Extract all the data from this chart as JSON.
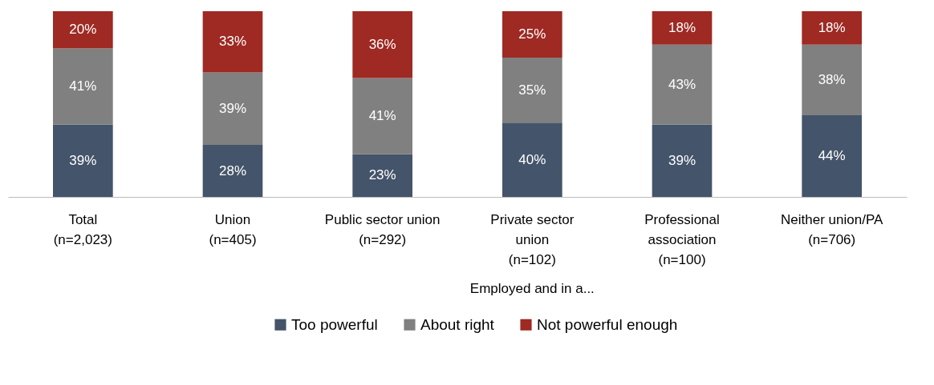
{
  "chart_data": {
    "type": "bar",
    "stacked": true,
    "legend": "bottom",
    "grid": false,
    "categories": [
      "Total\n(n=2,023)",
      "Union\n(n=405)",
      "Public sector union\n(n=292)",
      "Private sector\nunion\n(n=102)",
      "Professional\nassociation\n(n=100)",
      "Neither union/PA\n(n=706)"
    ],
    "series": [
      {
        "name": "Too powerful",
        "color": "#44546a",
        "values": [
          39,
          28,
          23,
          40,
          39,
          44
        ],
        "value_labels": [
          "39%",
          "28%",
          "23%",
          "40%",
          "39%",
          "44%"
        ]
      },
      {
        "name": "About right",
        "color": "#808080",
        "values": [
          41,
          39,
          41,
          35,
          43,
          38
        ],
        "value_labels": [
          "41%",
          "39%",
          "41%",
          "35%",
          "43%",
          "38%"
        ]
      },
      {
        "name": "Not powerful enough",
        "color": "#9e2a23",
        "values": [
          20,
          33,
          36,
          25,
          18,
          18
        ],
        "value_labels": [
          "20%",
          "33%",
          "36%",
          "25%",
          "18%",
          "18%"
        ]
      }
    ],
    "annotations": [
      "Employed and in a..."
    ]
  }
}
